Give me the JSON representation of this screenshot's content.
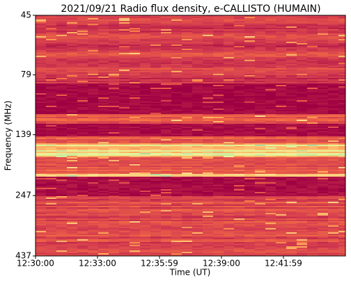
{
  "chart_data": {
    "type": "spectrogram",
    "title": "2021/09/21  Radio flux density, e-CALLISTO (HUMAIN)",
    "xlabel": "Time (UT)",
    "ylabel": "Frequency (MHz)",
    "xticks": [
      "12:30:00",
      "12:33:00",
      "12:35:59",
      "12:39:00",
      "12:41:59"
    ],
    "ylim": [
      437,
      45
    ],
    "yticks": [
      45,
      79,
      139,
      247,
      437
    ],
    "ylog": true
  }
}
